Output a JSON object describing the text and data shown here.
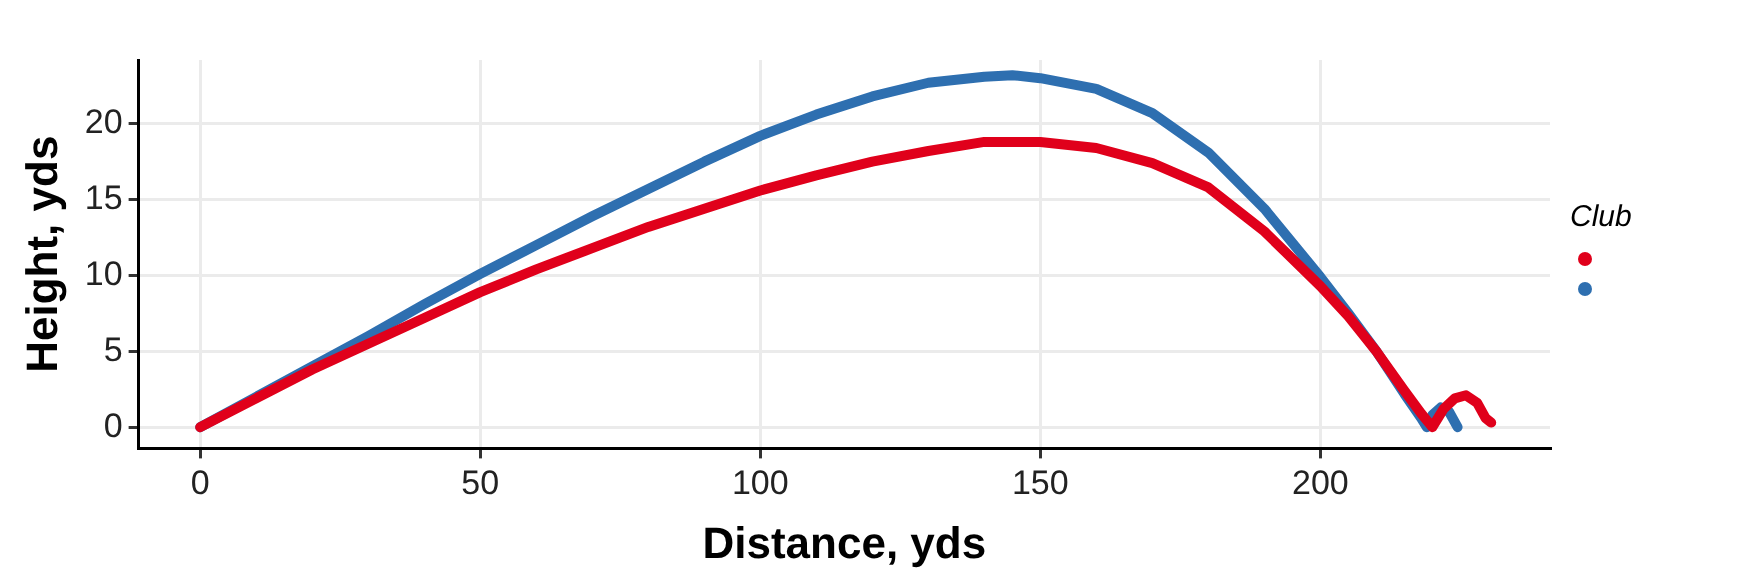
{
  "chart_data": {
    "type": "line",
    "xlabel": "Distance, yds",
    "ylabel": "Height, yds",
    "legend_title": "Club",
    "grid": true,
    "xlim": [
      -11,
      241
    ],
    "xticks": [
      0,
      50,
      100,
      150,
      200
    ],
    "ylim": [
      -1.4,
      24.2
    ],
    "yticks": [
      0,
      5,
      10,
      15,
      20
    ],
    "series": [
      {
        "color": "#e0001b",
        "x": [
          0,
          10,
          20,
          30,
          40,
          50,
          60,
          70,
          80,
          90,
          100,
          110,
          120,
          130,
          140,
          150,
          160,
          170,
          180,
          190,
          200,
          205,
          210,
          215,
          218,
          220,
          222,
          224,
          226,
          228,
          229.5,
          230.5
        ],
        "values": [
          0,
          1.9,
          3.8,
          5.5,
          7.2,
          8.9,
          10.4,
          11.8,
          13.2,
          14.4,
          15.6,
          16.6,
          17.5,
          18.2,
          18.8,
          18.8,
          18.4,
          17.4,
          15.8,
          12.9,
          9.3,
          7.3,
          5.0,
          2.4,
          0.9,
          0,
          1.2,
          1.9,
          2.1,
          1.6,
          0.6,
          0.3
        ]
      },
      {
        "color": "#2e6fb0",
        "x": [
          0,
          10,
          20,
          30,
          40,
          50,
          60,
          70,
          80,
          90,
          100,
          110,
          120,
          130,
          140,
          145,
          150,
          160,
          170,
          180,
          190,
          200,
          205,
          210,
          215,
          218,
          219,
          220,
          221.5,
          223,
          224.5
        ],
        "values": [
          0,
          2,
          4,
          6,
          8.1,
          10.1,
          12,
          13.9,
          15.7,
          17.5,
          19.2,
          20.6,
          21.8,
          22.7,
          23.1,
          23.2,
          23.0,
          22.3,
          20.7,
          18.1,
          14.4,
          9.9,
          7.5,
          5.0,
          2.2,
          0.6,
          0,
          0.8,
          1.3,
          1,
          0
        ]
      }
    ]
  }
}
